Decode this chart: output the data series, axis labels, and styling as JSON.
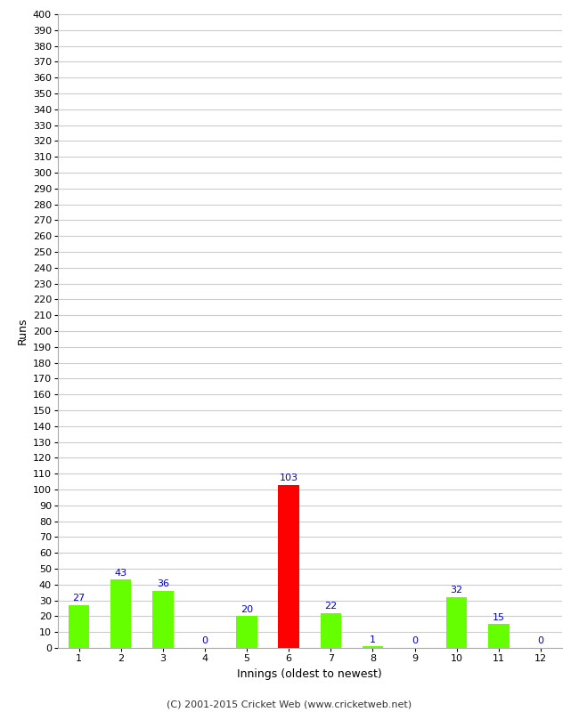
{
  "xlabel": "Innings (oldest to newest)",
  "ylabel": "Runs",
  "categories": [
    1,
    2,
    3,
    4,
    5,
    6,
    7,
    8,
    9,
    10,
    11,
    12
  ],
  "values": [
    27,
    43,
    36,
    0,
    20,
    103,
    22,
    1,
    0,
    32,
    15,
    0
  ],
  "bar_colors": [
    "#66ff00",
    "#66ff00",
    "#66ff00",
    "#66ff00",
    "#66ff00",
    "#ff0000",
    "#66ff00",
    "#66ff00",
    "#66ff00",
    "#66ff00",
    "#66ff00",
    "#66ff00"
  ],
  "ylim": [
    0,
    400
  ],
  "ytick_step": 10,
  "background_color": "#ffffff",
  "grid_color": "#cccccc",
  "label_color": "#0000cc",
  "footer": "(C) 2001-2015 Cricket Web (www.cricketweb.net)",
  "bar_width": 0.5
}
